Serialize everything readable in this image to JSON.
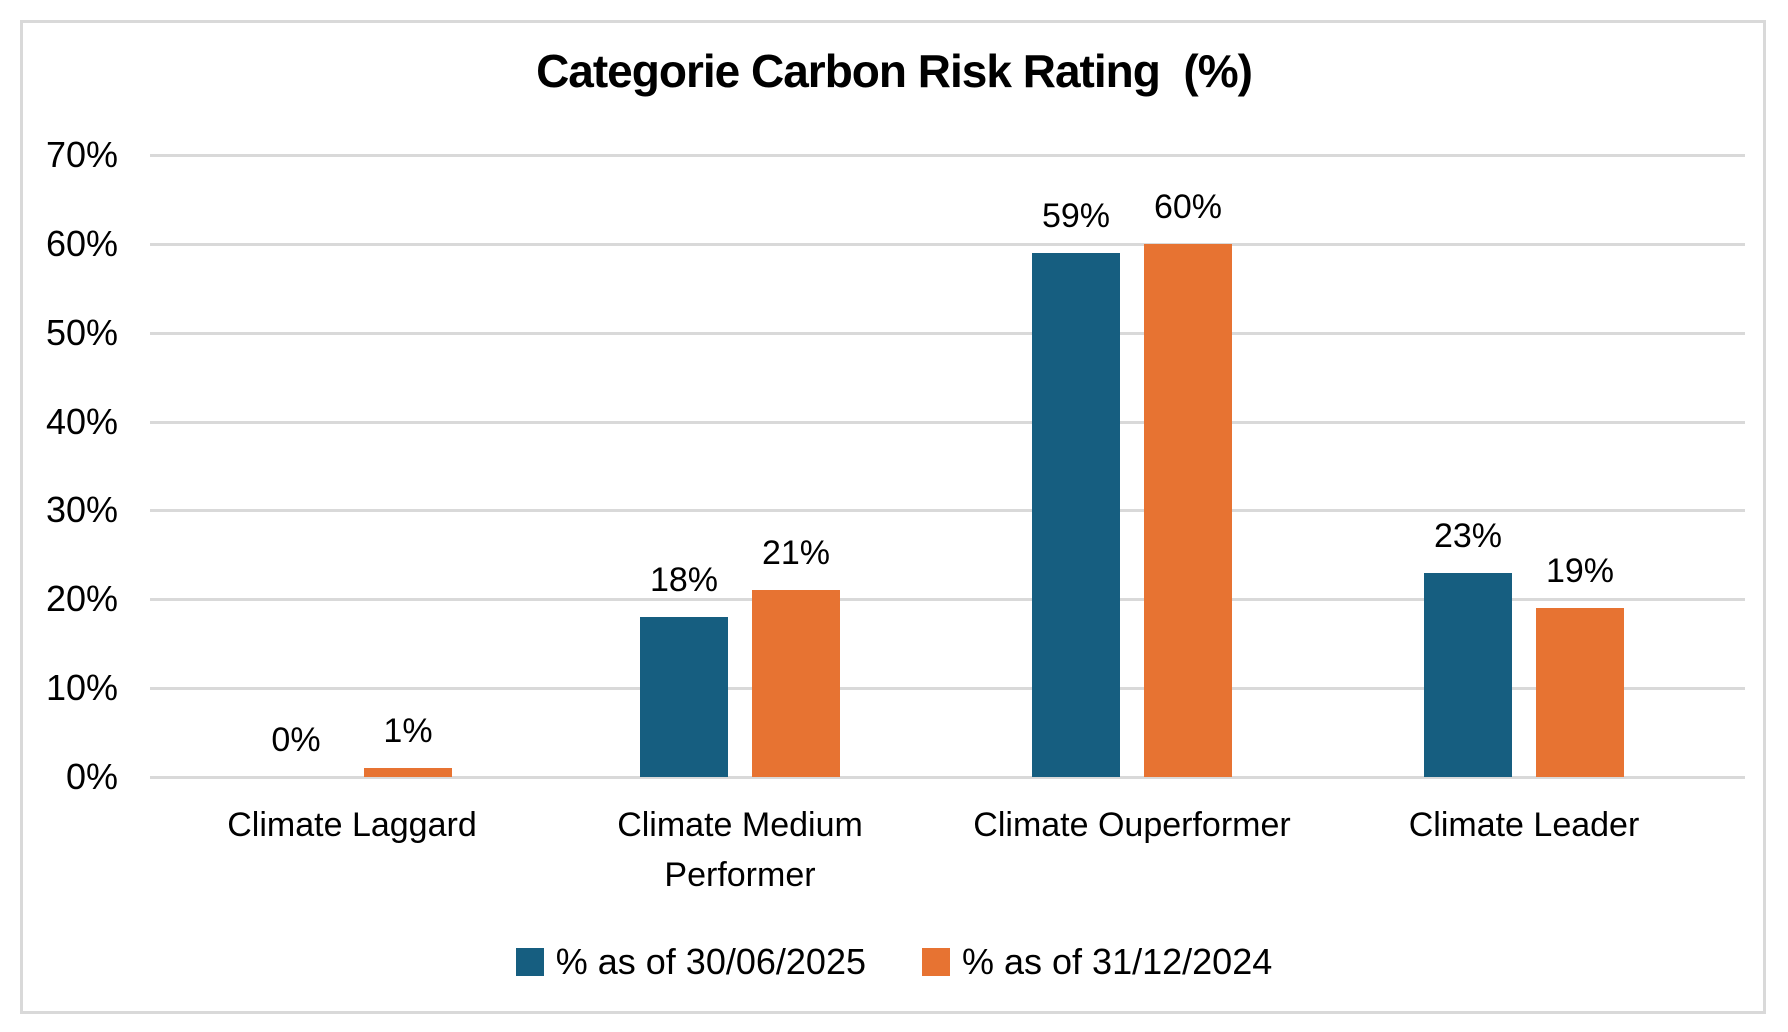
{
  "chart_data": {
    "type": "bar",
    "title": "Categorie Carbon Risk Rating  (%)",
    "categories": [
      "Climate Laggard",
      "Climate Medium Performer",
      "Climate Ouperformer",
      "Climate Leader"
    ],
    "category_label_lines": [
      [
        "Climate Laggard"
      ],
      [
        "Climate Medium",
        "Performer"
      ],
      [
        "Climate Ouperformer"
      ],
      [
        "Climate Leader"
      ]
    ],
    "series": [
      {
        "name": "% as of 30/06/2025",
        "color": "#165E80",
        "values": [
          0,
          18,
          59,
          23
        ],
        "data_labels": [
          "0%",
          "18%",
          "59%",
          "23%"
        ]
      },
      {
        "name": "% as of 31/12/2024",
        "color": "#E77332",
        "values": [
          1,
          21,
          60,
          19
        ],
        "data_labels": [
          "1%",
          "21%",
          "60%",
          "19%"
        ]
      }
    ],
    "xlabel": "",
    "ylabel": "",
    "ylim": [
      0,
      70
    ],
    "ytick_step": 10,
    "ytick_labels": [
      "0%",
      "10%",
      "20%",
      "30%",
      "40%",
      "50%",
      "60%",
      "70%"
    ],
    "grid": true,
    "legend_position": "bottom",
    "colors": {
      "grid": "#D9D9D9",
      "frame_border": "#D9D9D9",
      "text": "#000000",
      "background": "#FFFFFF"
    }
  }
}
